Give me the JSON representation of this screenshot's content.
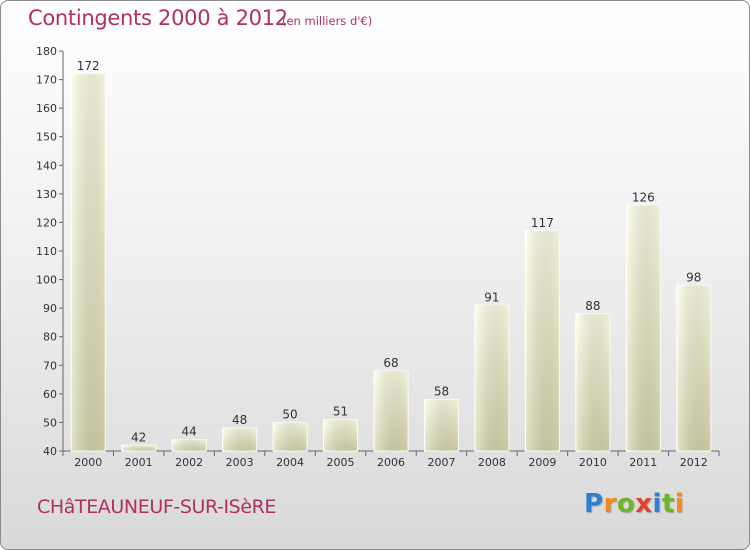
{
  "header": {
    "title": "Contingents 2000 à 2012",
    "subtitle": "(en milliers d'€)"
  },
  "footer": {
    "town": "CHâTEAUNEUF-SUR-ISèRE",
    "logo_letters": [
      "P",
      "r",
      "o",
      "x",
      "i",
      "t",
      "i"
    ],
    "logo_colors": [
      "#2f7fd0",
      "#f08a1c",
      "#6fb52c",
      "#e0422c",
      "#2f7fd0",
      "#6fb52c",
      "#f08a1c"
    ]
  },
  "chart_data": {
    "type": "bar",
    "categories": [
      "2000",
      "2001",
      "2002",
      "2003",
      "2004",
      "2005",
      "2006",
      "2007",
      "2008",
      "2009",
      "2010",
      "2011",
      "2012"
    ],
    "values": [
      172,
      42,
      44,
      48,
      50,
      51,
      68,
      58,
      91,
      117,
      88,
      126,
      98
    ],
    "ylim": [
      40,
      180
    ],
    "yticks": [
      40,
      50,
      60,
      70,
      80,
      90,
      100,
      110,
      120,
      130,
      140,
      150,
      160,
      170,
      180
    ],
    "grid": false,
    "bar_color_top": "#ffffe6",
    "bar_color_bottom": "#d6d6aa"
  }
}
